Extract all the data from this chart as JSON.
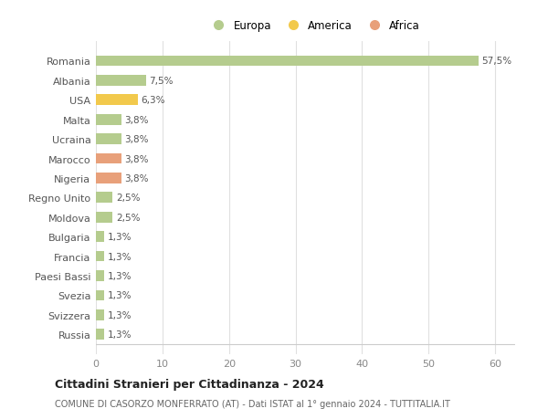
{
  "countries": [
    "Romania",
    "Albania",
    "USA",
    "Malta",
    "Ucraina",
    "Marocco",
    "Nigeria",
    "Regno Unito",
    "Moldova",
    "Bulgaria",
    "Francia",
    "Paesi Bassi",
    "Svezia",
    "Svizzera",
    "Russia"
  ],
  "values": [
    57.5,
    7.5,
    6.3,
    3.8,
    3.8,
    3.8,
    3.8,
    2.5,
    2.5,
    1.3,
    1.3,
    1.3,
    1.3,
    1.3,
    1.3
  ],
  "labels": [
    "57,5%",
    "7,5%",
    "6,3%",
    "3,8%",
    "3,8%",
    "3,8%",
    "3,8%",
    "2,5%",
    "2,5%",
    "1,3%",
    "1,3%",
    "1,3%",
    "1,3%",
    "1,3%",
    "1,3%"
  ],
  "colors": [
    "#b5cc8e",
    "#b5cc8e",
    "#f2c94c",
    "#b5cc8e",
    "#b5cc8e",
    "#e8a07a",
    "#e8a07a",
    "#b5cc8e",
    "#b5cc8e",
    "#b5cc8e",
    "#b5cc8e",
    "#b5cc8e",
    "#b5cc8e",
    "#b5cc8e",
    "#b5cc8e"
  ],
  "legend_labels": [
    "Europa",
    "America",
    "Africa"
  ],
  "legend_colors": [
    "#b5cc8e",
    "#f2c94c",
    "#e8a07a"
  ],
  "title": "Cittadini Stranieri per Cittadinanza - 2024",
  "subtitle": "COMUNE DI CASORZO MONFERRATO (AT) - Dati ISTAT al 1° gennaio 2024 - TUTTITALIA.IT",
  "xlim": [
    0,
    63
  ],
  "xticks": [
    0,
    10,
    20,
    30,
    40,
    50,
    60
  ],
  "bg_color": "#ffffff",
  "grid_color": "#e0e0e0",
  "bar_height": 0.55
}
